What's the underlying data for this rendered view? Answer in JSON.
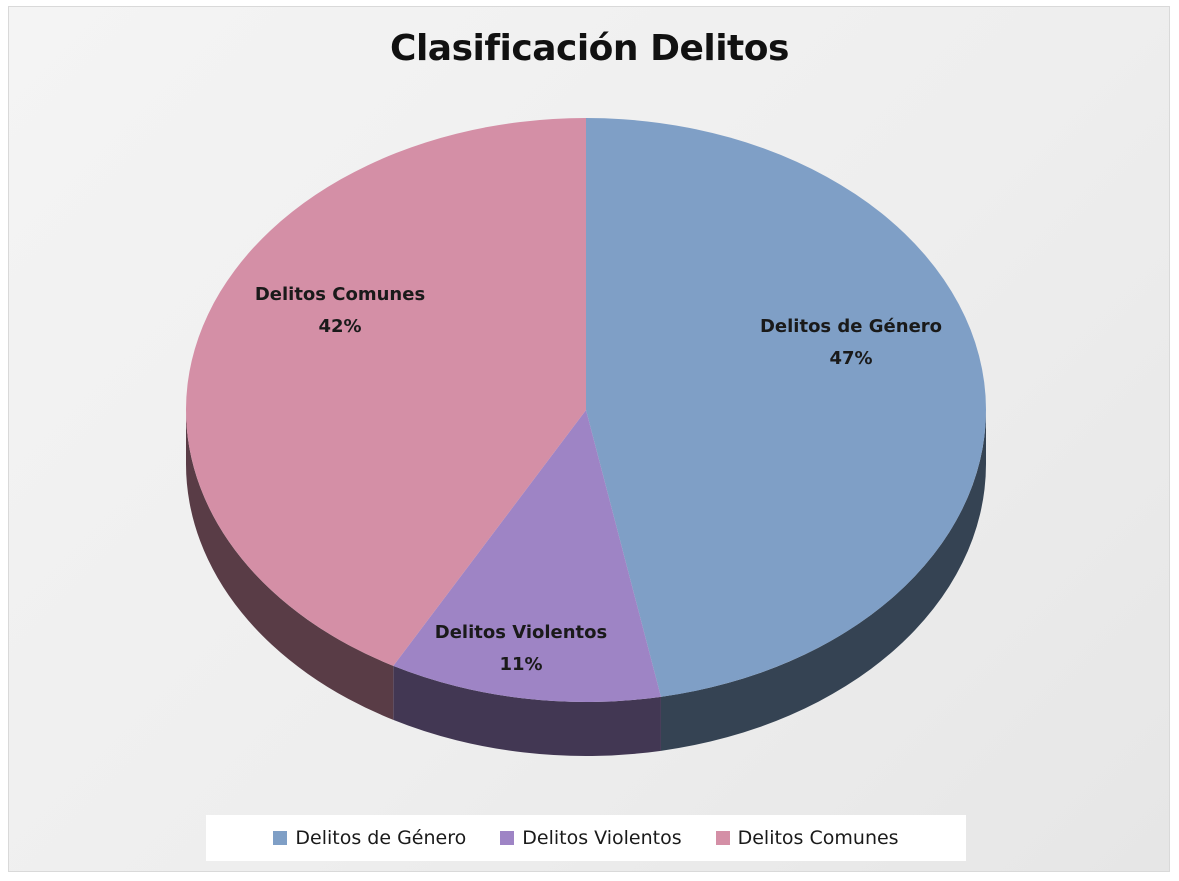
{
  "chart_data": {
    "type": "pie",
    "title": "Clasificación Delitos",
    "style": "3d",
    "legend_position": "bottom",
    "slices": [
      {
        "name": "Delitos de Género",
        "value": 47,
        "label": "47%",
        "color": "#7f9fc6"
      },
      {
        "name": "Delitos Violentos",
        "value": 11,
        "label": "11%",
        "color": "#9e84c5"
      },
      {
        "name": "Delitos Comunes",
        "value": 42,
        "label": "42%",
        "color": "#d48fa6"
      }
    ]
  },
  "legend": {
    "items": [
      {
        "label": "Delitos de Género",
        "color": "#7f9fc6"
      },
      {
        "label": "Delitos Violentos",
        "color": "#9e84c5"
      },
      {
        "label": "Delitos Comunes",
        "color": "#d48fa6"
      }
    ]
  }
}
